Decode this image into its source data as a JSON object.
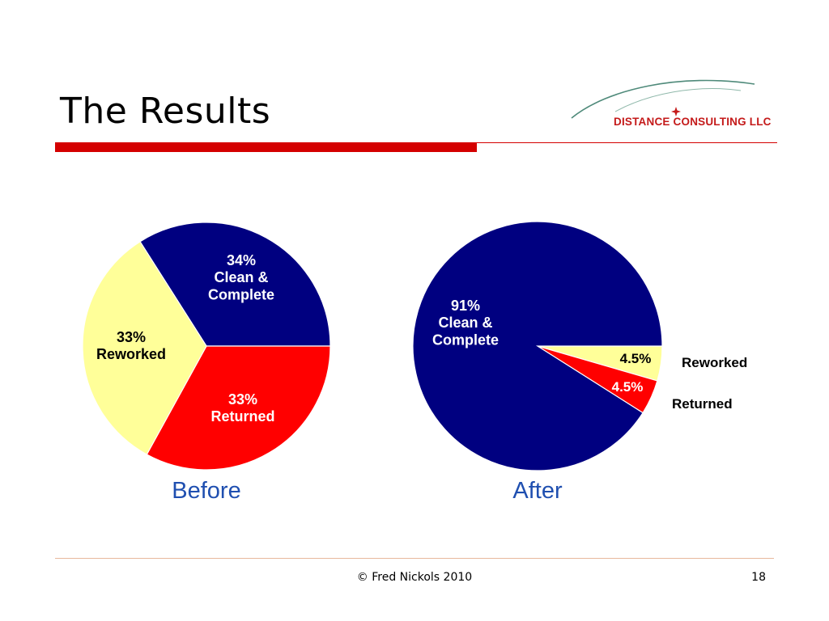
{
  "slide": {
    "title": "The Results",
    "logo_text": "DISTANCE CONSULTING LLC",
    "footer": "© Fred Nickols 2010",
    "page_number": "18"
  },
  "colors": {
    "navy": "#000080",
    "yellow": "#ffff99",
    "red": "#ff0000",
    "accent": "#d40000"
  },
  "chart_data": [
    {
      "type": "pie",
      "title": "Before",
      "slices": [
        {
          "pct_label": "34%",
          "name_lines": [
            "Clean &",
            "Complete"
          ],
          "value": 34,
          "color": "#000080",
          "label_color": "#ffffff"
        },
        {
          "pct_label": "33%",
          "name_lines": [
            "Returned"
          ],
          "value": 33,
          "color": "#ff0000",
          "label_color": "#ffffff"
        },
        {
          "pct_label": "33%",
          "name_lines": [
            "Reworked"
          ],
          "value": 33,
          "color": "#ffff99",
          "label_color": "#000000"
        }
      ]
    },
    {
      "type": "pie",
      "title": "After",
      "slices": [
        {
          "pct_label": "4.5%",
          "name": "Reworked",
          "value": 4.5,
          "color": "#ffff99",
          "label_color": "#000000"
        },
        {
          "pct_label": "4.5%",
          "name": "Returned",
          "value": 4.5,
          "color": "#ff0000",
          "label_color": "#ffffff"
        },
        {
          "pct_label": "91%",
          "name_lines": [
            "Clean &",
            "Complete"
          ],
          "value": 91,
          "color": "#000080",
          "label_color": "#ffffff"
        }
      ]
    }
  ]
}
